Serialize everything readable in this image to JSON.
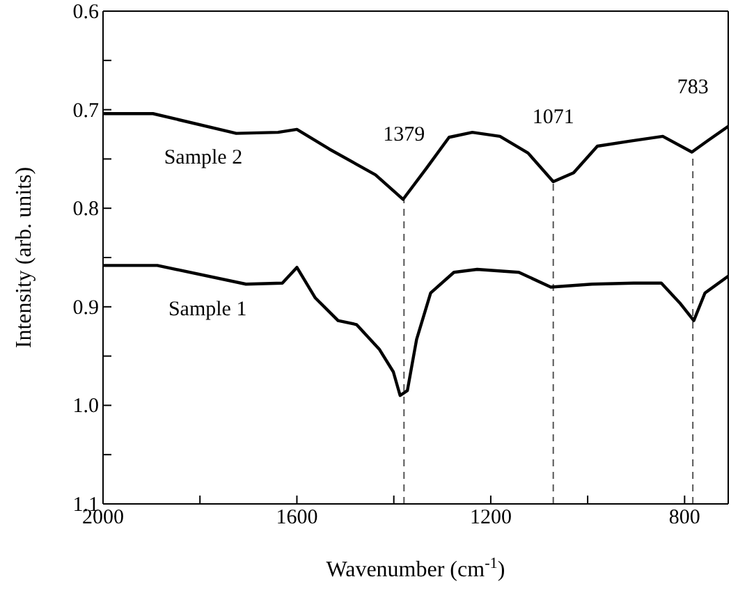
{
  "chart_data": {
    "type": "line",
    "xlabel": "Wavenumber (cm$^{-1}$)",
    "ylabel": "Intensity (arb. units)",
    "xlim": [
      2000,
      710
    ],
    "ylim": [
      1.1,
      0.6
    ],
    "xticks": [
      2000,
      {
        "value": 1800,
        "label": null
      },
      1600,
      {
        "value": 1400,
        "label": null
      },
      1200,
      {
        "value": 1000,
        "label": null
      },
      800
    ],
    "yticks": [
      {
        "value": 0.6,
        "label": "0.6"
      },
      {
        "value": 0.65,
        "label": null
      },
      {
        "value": 0.7,
        "label": "0.7"
      },
      {
        "value": 0.75,
        "label": null
      },
      {
        "value": 0.8,
        "label": "0.8"
      },
      {
        "value": 0.85,
        "label": null
      },
      {
        "value": 0.9,
        "label": "0.9"
      },
      {
        "value": 0.95,
        "label": null
      },
      {
        "value": 1.0,
        "label": "1.0"
      },
      {
        "value": 1.05,
        "label": null
      },
      {
        "value": 1.1,
        "label": "1.1"
      }
    ],
    "grid": false,
    "legend": false,
    "marker": "none",
    "line_style": "solid",
    "series": [
      {
        "name": "Sample 2",
        "color": "#000000",
        "x": [
          2000,
          1897,
          1725,
          1639,
          1600,
          1533,
          1438,
          1381,
          1332,
          1286,
          1238,
          1181,
          1123,
          1071,
          1029,
          980,
          914,
          845,
          785,
          751,
          710
        ],
        "values": [
          0.704,
          0.704,
          0.724,
          0.723,
          0.72,
          0.74,
          0.766,
          0.791,
          0.759,
          0.728,
          0.723,
          0.727,
          0.744,
          0.773,
          0.764,
          0.737,
          0.732,
          0.727,
          0.743,
          0.731,
          0.717
        ]
      },
      {
        "name": "Sample 1",
        "color": "#000000",
        "x": [
          2000,
          1888,
          1705,
          1630,
          1600,
          1562,
          1515,
          1477,
          1430,
          1401,
          1387,
          1372,
          1353,
          1324,
          1276,
          1228,
          1142,
          1076,
          991,
          905,
          848,
          810,
          781,
          758,
          710
        ],
        "values": [
          0.858,
          0.858,
          0.877,
          0.876,
          0.86,
          0.891,
          0.914,
          0.918,
          0.943,
          0.966,
          0.99,
          0.985,
          0.933,
          0.886,
          0.865,
          0.862,
          0.865,
          0.88,
          0.877,
          0.876,
          0.876,
          0.896,
          0.914,
          0.886,
          0.869
        ]
      }
    ],
    "ref_lines": [
      {
        "axis": "x",
        "value": 1379,
        "label": "1379",
        "color": "#555555",
        "line_style": "dashed"
      },
      {
        "axis": "x",
        "value": 1071,
        "label": "1071",
        "color": "#555555",
        "line_style": "dashed"
      },
      {
        "axis": "x",
        "value": 783,
        "label": "783",
        "color": "#555555",
        "line_style": "dashed"
      }
    ]
  }
}
